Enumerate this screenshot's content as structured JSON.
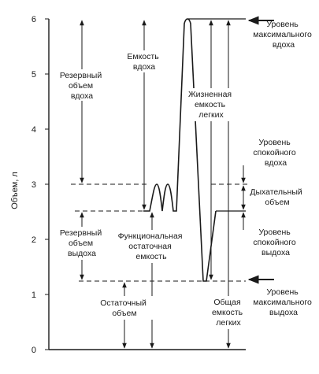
{
  "diagram": {
    "y_axis_label": "Объем, л",
    "y_ticks": [
      "0",
      "1",
      "2",
      "3",
      "4",
      "5",
      "6"
    ],
    "left_labels": {
      "inspiratory_reserve": [
        "Резервный",
        "объем",
        "вдоха"
      ],
      "expiratory_reserve": [
        "Резервный",
        "объем",
        "выдоха"
      ],
      "residual_volume": [
        "Остаточный",
        "объем"
      ]
    },
    "center_labels": {
      "inspiratory_capacity": [
        "Емкость",
        "вдоха"
      ],
      "functional_residual_capacity": [
        "Функциональная",
        "остаточная",
        "емкость"
      ]
    },
    "vital_capacity_label": [
      "Жизненная",
      "емкость",
      "легких"
    ],
    "total_capacity_label": [
      "Общая",
      "емкость",
      "легких"
    ],
    "right_labels": {
      "max_inspiration_level": [
        "Уровень",
        "максимального",
        "вдоха"
      ],
      "quiet_inspiration_level": [
        "Уровень",
        "спокойного",
        "вдоха"
      ],
      "tidal_volume": [
        "Дыхательный",
        "объем"
      ],
      "quiet_expiration_level": [
        "Уровень",
        "спокойного",
        "выдоха"
      ],
      "max_expiration_level": [
        "Уровень",
        "максимального",
        "выдоха"
      ]
    },
    "levels_liters": {
      "max_inspiration": 6.0,
      "quiet_inspiration": 3.0,
      "quiet_expiration": 2.5,
      "max_expiration": 1.25
    }
  }
}
